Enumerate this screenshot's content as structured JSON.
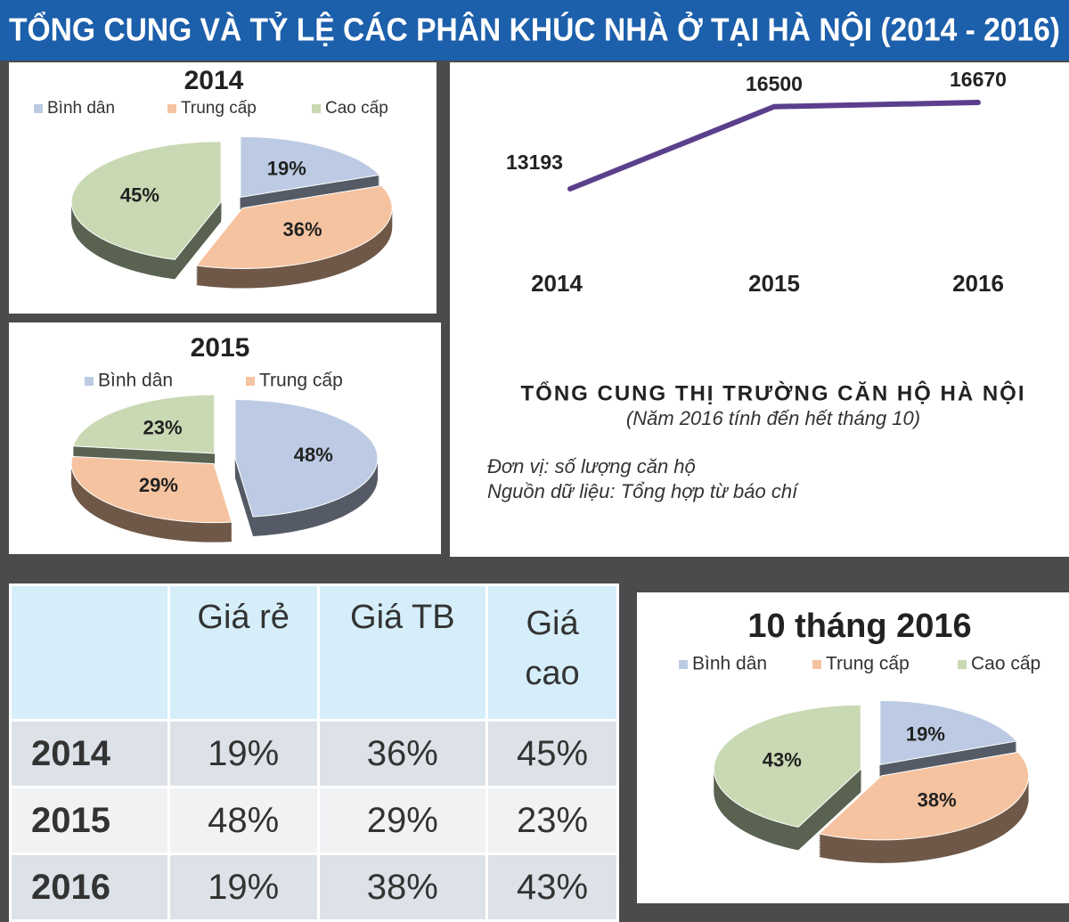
{
  "title": "TỔNG CUNG VÀ TỶ LỆ CÁC PHÂN KHÚC NHÀ Ở TẠI HÀ NỘI (2014 - 2016)",
  "chart_data": [
    {
      "type": "pie",
      "title": "2014",
      "categories": [
        "Bình dân",
        "Trung cấp",
        "Cao cấp"
      ],
      "values": [
        19,
        36,
        45
      ],
      "value_labels": [
        "19%",
        "36%",
        "45%"
      ],
      "colors": [
        "#bccbe3",
        "#f6c3a0",
        "#c9d9b3"
      ]
    },
    {
      "type": "pie",
      "title": "2015",
      "categories": [
        "Bình dân",
        "Trung cấp",
        null
      ],
      "values": [
        48,
        29,
        23
      ],
      "value_labels": [
        "48%",
        "29%",
        "23%"
      ],
      "colors": [
        "#bccbe3",
        "#f6c3a0",
        "#c9d9b3"
      ]
    },
    {
      "type": "line",
      "title": "TỔNG CUNG THỊ TRƯỜNG CĂN HỘ HÀ NỘI",
      "subtitle": "(Năm 2016 tính đến hết tháng 10)",
      "unit": "Đơn vị: số lượng căn hộ",
      "source": "Nguồn dữ liệu: Tổng hợp từ báo chí",
      "categories": [
        "2014",
        "2015",
        "2016"
      ],
      "values": [
        13193,
        16500,
        16670
      ],
      "color": "#5b3f8c"
    },
    {
      "type": "pie",
      "title": "10 tháng 2016",
      "categories": [
        "Bình dân",
        "Trung cấp",
        "Cao cấp"
      ],
      "values": [
        19,
        38,
        43
      ],
      "value_labels": [
        "19%",
        "38%",
        "43%"
      ],
      "colors": [
        "#bccbe3",
        "#f6c3a0",
        "#c9d9b3"
      ]
    }
  ],
  "table": {
    "header": [
      "Giá rẻ",
      "Giá TB",
      "Giá cao"
    ],
    "rows": [
      [
        "2014",
        "19%",
        "36%",
        "45%"
      ],
      [
        "2015",
        "48%",
        "29%",
        "23%"
      ],
      [
        "2016",
        "19%",
        "38%",
        "43%"
      ]
    ]
  }
}
